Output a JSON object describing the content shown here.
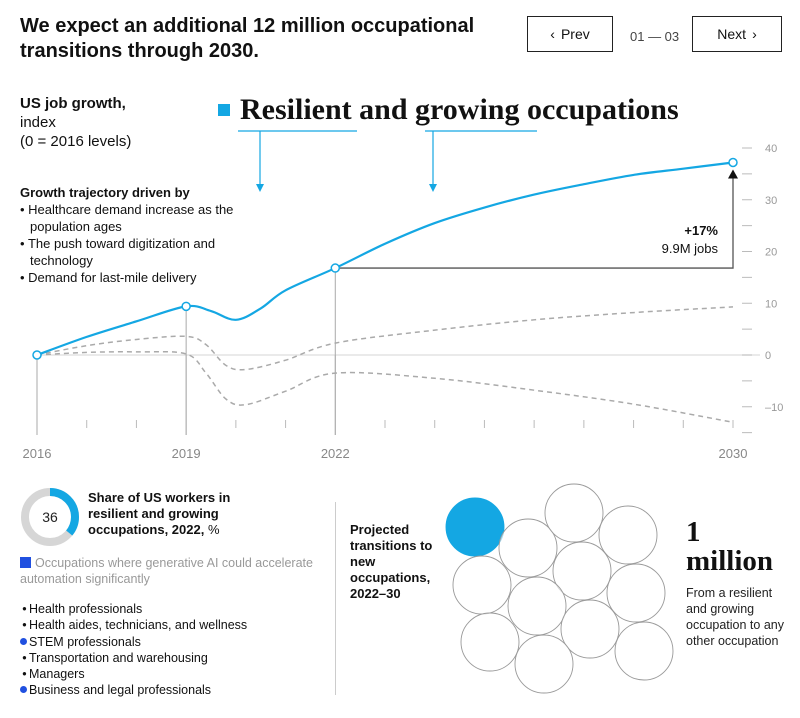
{
  "header": {
    "title": "We expect an additional 12 million occupational transitions through 2030.",
    "prev_label": "Prev",
    "next_label": "Next",
    "pager": "01 — 03",
    "prev_icon": "chevron-left-icon",
    "next_icon": "chevron-right-icon"
  },
  "chart_data": {
    "type": "line",
    "title": "US job growth,",
    "ylabel_lines": [
      "index",
      "(0 = 2016 levels)"
    ],
    "legend_label": "Resilient and growing occupations",
    "x_tick_labels": [
      "2016",
      "2019",
      "2022",
      "2030"
    ],
    "xlim": [
      2016,
      2030
    ],
    "ylim": [
      -15,
      40
    ],
    "y_tick_labels": [
      "40",
      "30",
      "20",
      "10",
      "0",
      "–10"
    ],
    "accent_color": "#14a7e3",
    "series": [
      {
        "name": "Resilient and growing occupations",
        "style": "solid",
        "color": "#14a7e3",
        "points": [
          [
            2016,
            0
          ],
          [
            2017,
            3.5
          ],
          [
            2018,
            6.5
          ],
          [
            2019,
            9.4
          ],
          [
            2019.5,
            8.5
          ],
          [
            2020,
            6.8
          ],
          [
            2020.5,
            9
          ],
          [
            2021,
            12.5
          ],
          [
            2022,
            16.8
          ],
          [
            2023,
            21.5
          ],
          [
            2024,
            25.5
          ],
          [
            2025,
            28.5
          ],
          [
            2026,
            31
          ],
          [
            2027,
            33
          ],
          [
            2028,
            34.8
          ],
          [
            2029,
            36
          ],
          [
            2030,
            37.2
          ]
        ],
        "markers": [
          2016,
          2019,
          2022,
          2030
        ]
      },
      {
        "style": "dashed",
        "color": "#aaa",
        "points": [
          [
            2016,
            0
          ],
          [
            2017,
            1.8
          ],
          [
            2018,
            3
          ],
          [
            2019,
            3.6
          ],
          [
            2019.4,
            2
          ],
          [
            2019.8,
            -2
          ],
          [
            2020.2,
            -2.8
          ],
          [
            2021,
            -1
          ],
          [
            2022,
            2.3
          ],
          [
            2024,
            4.8
          ],
          [
            2026,
            6.8
          ],
          [
            2028,
            8.2
          ],
          [
            2030,
            9.3
          ]
        ]
      },
      {
        "style": "dashed",
        "color": "#aaa",
        "points": [
          [
            2016,
            0
          ],
          [
            2017,
            0.5
          ],
          [
            2018,
            0.6
          ],
          [
            2019,
            0.2
          ],
          [
            2019.4,
            -3.5
          ],
          [
            2019.8,
            -8.5
          ],
          [
            2020.2,
            -9.6
          ],
          [
            2021,
            -7
          ],
          [
            2022,
            -3.5
          ],
          [
            2024,
            -4.5
          ],
          [
            2026,
            -6.8
          ],
          [
            2028,
            -9.5
          ],
          [
            2030,
            -13
          ]
        ]
      }
    ],
    "annotation": {
      "value": "+17%",
      "detail": "9.9M jobs",
      "from": 2022,
      "to": 2030
    }
  },
  "drivers": {
    "heading": "Growth trajectory driven by",
    "items": [
      "Healthcare demand increase as the population ages",
      "The push toward digitization and technology",
      "Demand for last-mile delivery"
    ]
  },
  "share": {
    "value": 36,
    "label": "36",
    "title": "Share of US workers in resilient and growing occupations, 2022,",
    "unit": "%"
  },
  "genai_legend": {
    "label": "Occupations where generative AI could accelerate automation significantly",
    "color": "#2050e0"
  },
  "occupations": [
    {
      "label": "Health professionals",
      "genai": false
    },
    {
      "label": "Health aides, technicians, and wellness",
      "genai": false
    },
    {
      "label": "STEM professionals",
      "genai": true
    },
    {
      "label": "Transportation and warehousing",
      "genai": false
    },
    {
      "label": "Managers",
      "genai": false
    },
    {
      "label": "Business and legal professionals",
      "genai": true
    }
  ],
  "transitions": {
    "label": "Projected transitions to new occupations, 2022–30",
    "circle_count": 12,
    "highlighted": 1,
    "big_number": "1",
    "big_unit": "million",
    "description": "From a resilient and growing occupation to any other occupation"
  }
}
